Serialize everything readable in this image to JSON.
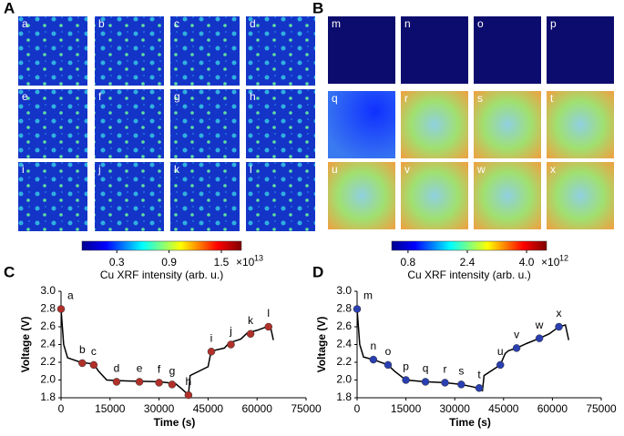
{
  "maps": [
    {
      "panel": "A",
      "tiles": [
        "a",
        "b",
        "c",
        "d",
        "e",
        "f",
        "g",
        "h",
        "i",
        "j",
        "k",
        "l"
      ],
      "colorbar": {
        "lim": [
          -0.1,
          1.73
        ],
        "ticks": [
          0.3,
          0.9,
          1.5
        ],
        "multiplier": "×10",
        "exponent": "13",
        "label": "Cu XRF intensity (arb. u.)"
      }
    },
    {
      "panel": "B",
      "tiles": [
        "m",
        "n",
        "o",
        "p",
        "q",
        "r",
        "s",
        "t",
        "u",
        "v",
        "w",
        "x"
      ],
      "colorbar": {
        "lim": [
          0.36,
          4.54
        ],
        "ticks": [
          0.8,
          2.4,
          {
            "value": 4,
            "label": "4.0"
          }
        ],
        "multiplier": "×10",
        "exponent": "12",
        "label": "Cu XRF intensity (arb. u.)"
      }
    }
  ],
  "chart_data": [
    {
      "type": "line",
      "panel": "C",
      "xlabel": "Time (s)",
      "ylabel": "Voltage (V)",
      "color": "#000000",
      "x": [
        0,
        800,
        2000,
        6000,
        10000,
        11500,
        14000,
        20000,
        30000,
        35000,
        37000,
        39000,
        39500,
        45000,
        45800,
        46500,
        50000,
        51500,
        55000,
        57000,
        60000,
        63000,
        64000,
        65000
      ],
      "y": [
        2.8,
        2.4,
        2.25,
        2.2,
        2.18,
        2.1,
        2.0,
        1.99,
        1.98,
        1.96,
        1.9,
        1.83,
        2.05,
        2.15,
        2.3,
        2.33,
        2.36,
        2.42,
        2.46,
        2.53,
        2.56,
        2.6,
        2.62,
        2.45
      ],
      "xlim": [
        0,
        75000
      ],
      "xticks": [
        0,
        15000,
        30000,
        45000,
        60000,
        75000
      ],
      "ylim": [
        1.8,
        3.0
      ],
      "yticks": [
        1.8,
        {
          "value": 2,
          "label": "2.0"
        },
        2.2,
        2.4,
        2.6,
        2.8,
        {
          "value": 3,
          "label": "3.0"
        }
      ],
      "points": {
        "color": "#b0302a",
        "x": [
          0,
          6500,
          10000,
          17000,
          24000,
          30000,
          34000,
          39000,
          46000,
          52000,
          58000,
          63500
        ],
        "values": [
          2.8,
          2.19,
          2.17,
          1.98,
          1.98,
          1.97,
          1.95,
          1.83,
          2.32,
          2.4,
          2.52,
          2.6
        ],
        "labels": [
          "a",
          "b",
          "c",
          "d",
          "e",
          "f",
          "g",
          "h",
          "i",
          "j",
          "k",
          "l"
        ]
      }
    },
    {
      "type": "line",
      "panel": "D",
      "xlabel": "Time (s)",
      "ylabel": "Voltage (V)",
      "color": "#000000",
      "x": [
        0,
        800,
        2000,
        5000,
        9500,
        11500,
        15000,
        21000,
        27000,
        32000,
        36000,
        38500,
        39000,
        44000,
        45500,
        46500,
        49000,
        52000,
        56000,
        59000,
        62000,
        64000,
        65000
      ],
      "y": [
        2.8,
        2.4,
        2.26,
        2.23,
        2.17,
        2.1,
        2.0,
        1.98,
        1.97,
        1.95,
        1.92,
        1.88,
        2.05,
        2.17,
        2.3,
        2.33,
        2.36,
        2.41,
        2.47,
        2.52,
        2.6,
        2.62,
        2.45
      ],
      "xlim": [
        0,
        75000
      ],
      "xticks": [
        0,
        15000,
        30000,
        45000,
        60000,
        75000
      ],
      "ylim": [
        1.8,
        3.0
      ],
      "yticks": [
        1.8,
        {
          "value": 2,
          "label": "2.0"
        },
        2.2,
        2.4,
        2.6,
        2.8,
        {
          "value": 3,
          "label": "3.0"
        }
      ],
      "points": {
        "color": "#2a3fb0",
        "x": [
          0,
          5000,
          9500,
          15000,
          21000,
          27000,
          32000,
          37500,
          44000,
          49000,
          56000,
          62000
        ],
        "values": [
          2.8,
          2.23,
          2.17,
          2.0,
          1.98,
          1.97,
          1.95,
          1.91,
          2.17,
          2.36,
          2.47,
          2.6
        ],
        "labels": [
          "m",
          "n",
          "o",
          "p",
          "q",
          "r",
          "s",
          "t",
          "u",
          "v",
          "w",
          "x"
        ]
      }
    }
  ]
}
